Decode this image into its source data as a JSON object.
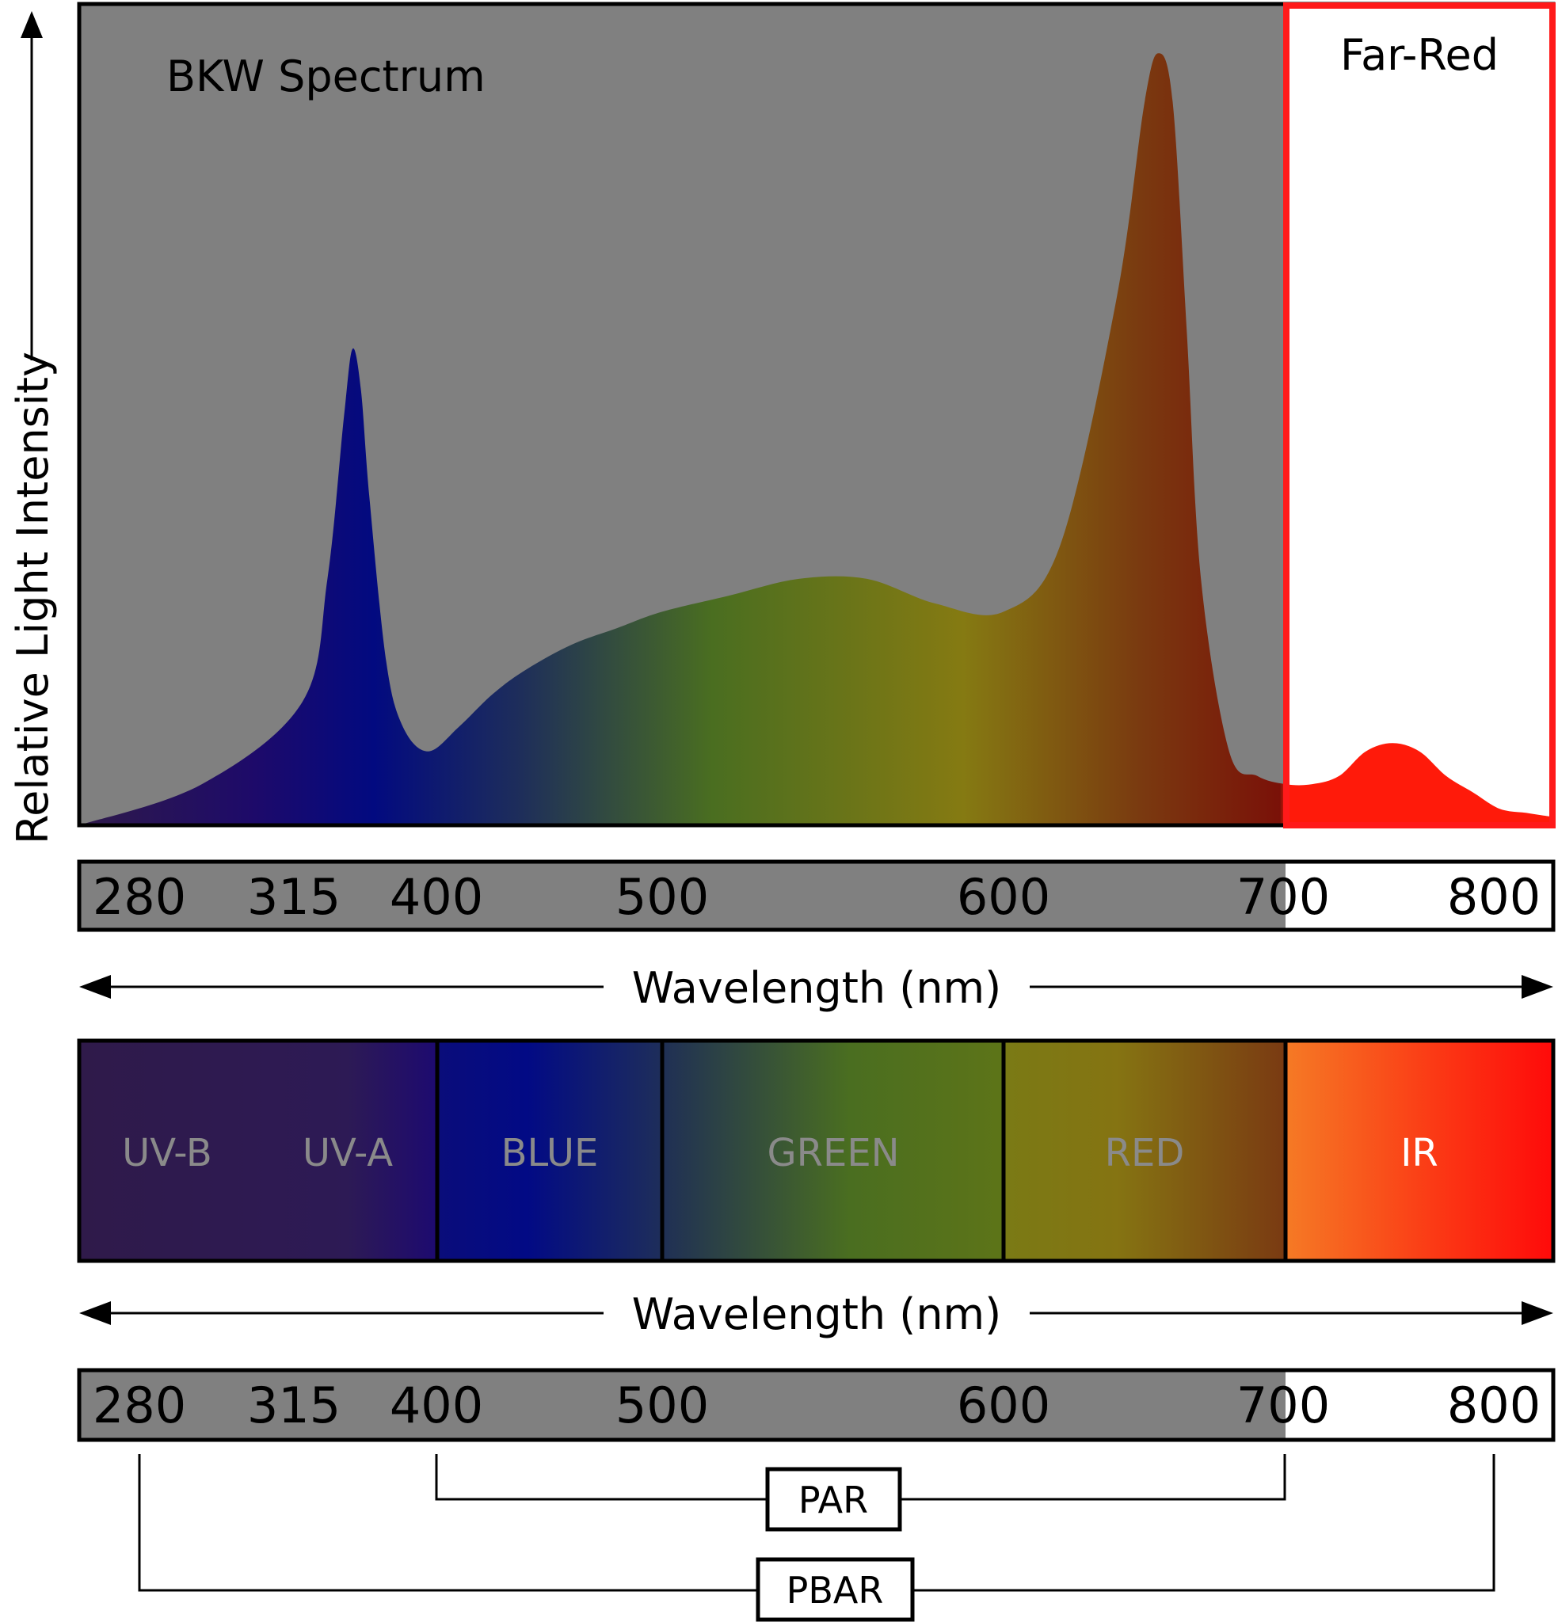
{
  "chart_data": {
    "type": "area",
    "title": "BKW Spectrum",
    "ylabel": "Relative Light Intensity",
    "xlabel": "Wavelength (nm)",
    "y_scale": "relative",
    "highlight_region": {
      "label": "Far-Red",
      "from": 700,
      "to": 800,
      "color": "#ff1a1a"
    },
    "x_ticks": [
      "280",
      "315",
      "400",
      "500",
      "600",
      "700",
      "800"
    ],
    "spectrum": {
      "name": "BKW Spectrum",
      "x": [
        280,
        300,
        320,
        335,
        345,
        350,
        355,
        360,
        370,
        380,
        395,
        410,
        425,
        440,
        460,
        480,
        500,
        520,
        540,
        560,
        580,
        600,
        620,
        640,
        650,
        655,
        660,
        665,
        670,
        680,
        690,
        700,
        710,
        720,
        730,
        740,
        750,
        760,
        770,
        780,
        790,
        800
      ],
      "y": [
        0.0,
        0.05,
        0.15,
        0.3,
        0.5,
        0.58,
        0.53,
        0.4,
        0.2,
        0.12,
        0.09,
        0.12,
        0.16,
        0.19,
        0.22,
        0.24,
        0.26,
        0.28,
        0.3,
        0.3,
        0.27,
        0.26,
        0.34,
        0.64,
        0.88,
        0.94,
        0.88,
        0.6,
        0.3,
        0.09,
        0.06,
        0.05,
        0.05,
        0.06,
        0.09,
        0.1,
        0.09,
        0.06,
        0.04,
        0.02,
        0.015,
        0.01
      ]
    },
    "bands": [
      {
        "label": "UV-B",
        "from": 280,
        "to": 315,
        "text_color": "#8a8a8a"
      },
      {
        "label": "UV-A",
        "from": 315,
        "to": 400,
        "text_color": "#8a8a8a"
      },
      {
        "label": "BLUE",
        "from": 400,
        "to": 500,
        "text_color": "#8a8a8a"
      },
      {
        "label": "GREEN",
        "from": 500,
        "to": 600,
        "text_color": "#8a8a8a"
      },
      {
        "label": "RED",
        "from": 600,
        "to": 700,
        "text_color": "#8a8a8a"
      },
      {
        "label": "IR",
        "from": 700,
        "to": 800,
        "text_color": "#ffffff"
      }
    ],
    "ranges": [
      {
        "label": "PAR",
        "from": 400,
        "to": 700
      },
      {
        "label": "PBAR",
        "from": 280,
        "to": 800
      }
    ],
    "colors": {
      "plot_background": "#808080",
      "highlight_border": "#ff1a1a",
      "uv": "#2f1a4a",
      "blue": "#020a80",
      "green": "#4a6e20",
      "yellow": "#857a12",
      "red": "#7a1108",
      "far_red": "#ff1a0a",
      "ir_start": "#f57a25"
    }
  }
}
